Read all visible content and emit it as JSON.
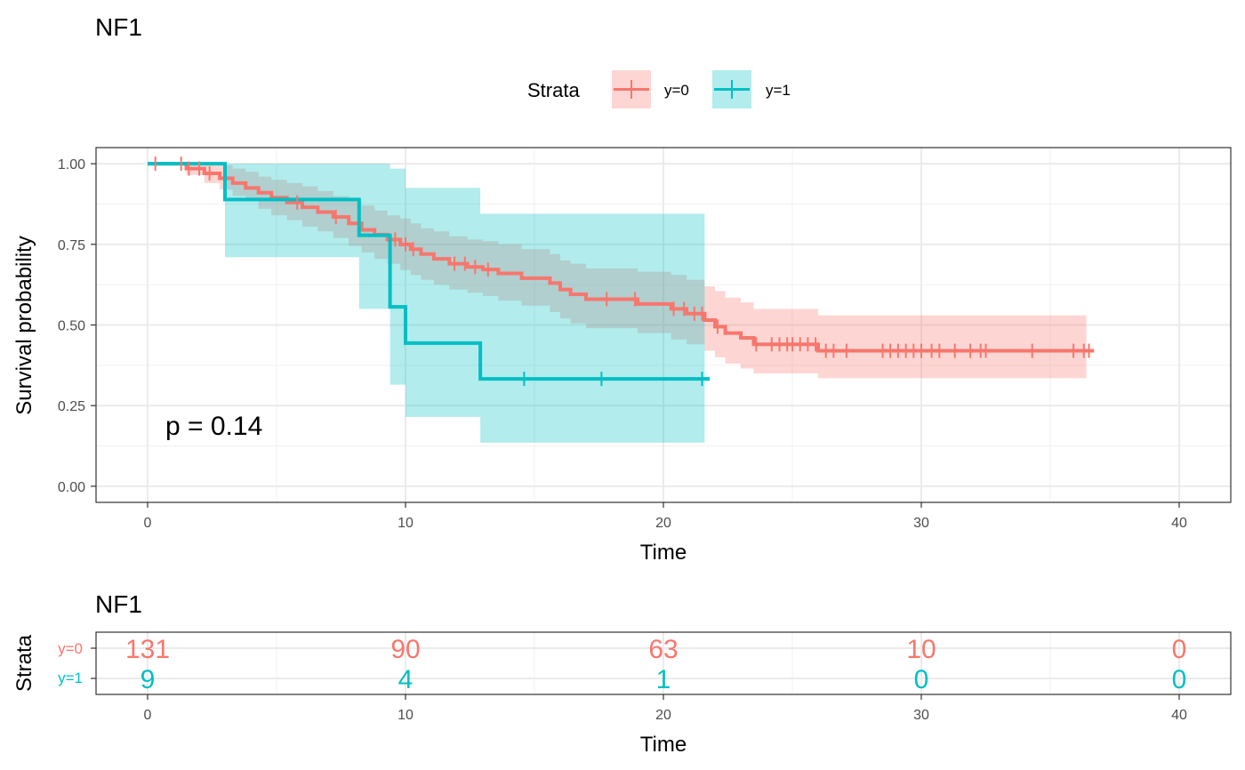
{
  "chart_data": [
    {
      "type": "line",
      "title": "NF1",
      "xlabel": "Time",
      "ylabel": "Survival probability",
      "xlim": [
        -2,
        42
      ],
      "ylim": [
        -0.05,
        1.05
      ],
      "x_ticks": [
        0,
        10,
        20,
        30,
        40
      ],
      "x_tick_labels": [
        "0",
        "10",
        "20",
        "30",
        "40"
      ],
      "y_ticks": [
        0,
        0.25,
        0.5,
        0.75,
        1.0
      ],
      "y_tick_labels": [
        "0.00",
        "0.25",
        "0.50",
        "0.75",
        "1.00"
      ],
      "grid": true,
      "legend": {
        "title": "Strata",
        "position": "top",
        "entries": [
          "y=0",
          "y=1"
        ]
      },
      "annotation": "p = 0.14",
      "series": [
        {
          "name": "y=0",
          "color": "#F8766D",
          "steps": [
            [
              0,
              1.0
            ],
            [
              1.5,
              0.985
            ],
            [
              2.2,
              0.97
            ],
            [
              2.8,
              0.955
            ],
            [
              3.3,
              0.94
            ],
            [
              3.8,
              0.925
            ],
            [
              4.3,
              0.91
            ],
            [
              4.8,
              0.895
            ],
            [
              5.4,
              0.88
            ],
            [
              6.0,
              0.865
            ],
            [
              6.6,
              0.85
            ],
            [
              7.2,
              0.835
            ],
            [
              7.8,
              0.815
            ],
            [
              8.3,
              0.795
            ],
            [
              8.8,
              0.78
            ],
            [
              9.3,
              0.765
            ],
            [
              9.8,
              0.75
            ],
            [
              10.2,
              0.735
            ],
            [
              10.6,
              0.72
            ],
            [
              11.1,
              0.705
            ],
            [
              11.7,
              0.69
            ],
            [
              12.4,
              0.68
            ],
            [
              13.0,
              0.672
            ],
            [
              13.6,
              0.66
            ],
            [
              14.5,
              0.645
            ],
            [
              15.6,
              0.63
            ],
            [
              16.0,
              0.61
            ],
            [
              16.4,
              0.595
            ],
            [
              17.0,
              0.58
            ],
            [
              19.0,
              0.565
            ],
            [
              20.3,
              0.55
            ],
            [
              20.9,
              0.535
            ],
            [
              21.6,
              0.515
            ],
            [
              22.0,
              0.495
            ],
            [
              22.4,
              0.475
            ],
            [
              23.0,
              0.46
            ],
            [
              23.5,
              0.44
            ],
            [
              26.0,
              0.42
            ]
          ],
          "end": 36.7,
          "censor": [
            0.3,
            1.3,
            1.6,
            2.0,
            2.4,
            5.8,
            7.3,
            9.6,
            10.0,
            10.3,
            11.9,
            12.3,
            12.7,
            13.2,
            17.8,
            18.9,
            20.4,
            20.8,
            21.2,
            21.5,
            22.1,
            23.6,
            24.2,
            24.5,
            24.8,
            25.0,
            25.3,
            25.6,
            25.9,
            26.3,
            26.6,
            27.1,
            28.5,
            28.8,
            29.1,
            29.4,
            29.7,
            30.0,
            30.4,
            30.7,
            31.3,
            31.9,
            32.3,
            32.5,
            34.3,
            35.9,
            36.3,
            36.5
          ],
          "ci": [
            [
              0,
              1.0,
              1.0
            ],
            [
              1.5,
              0.965,
              1.0
            ],
            [
              2.2,
              0.94,
              1.0
            ],
            [
              2.8,
              0.92,
              0.995
            ],
            [
              3.3,
              0.9,
              0.985
            ],
            [
              3.8,
              0.885,
              0.975
            ],
            [
              4.3,
              0.86,
              0.96
            ],
            [
              4.8,
              0.84,
              0.95
            ],
            [
              5.4,
              0.825,
              0.94
            ],
            [
              6.0,
              0.805,
              0.93
            ],
            [
              6.6,
              0.79,
              0.915
            ],
            [
              7.2,
              0.77,
              0.9
            ],
            [
              7.8,
              0.745,
              0.885
            ],
            [
              8.3,
              0.725,
              0.87
            ],
            [
              8.8,
              0.705,
              0.855
            ],
            [
              9.3,
              0.69,
              0.84
            ],
            [
              9.8,
              0.67,
              0.83
            ],
            [
              10.2,
              0.655,
              0.815
            ],
            [
              10.6,
              0.64,
              0.8
            ],
            [
              11.1,
              0.625,
              0.79
            ],
            [
              11.7,
              0.61,
              0.775
            ],
            [
              12.4,
              0.6,
              0.765
            ],
            [
              13.0,
              0.59,
              0.76
            ],
            [
              13.6,
              0.575,
              0.75
            ],
            [
              14.5,
              0.56,
              0.735
            ],
            [
              15.6,
              0.54,
              0.72
            ],
            [
              16.0,
              0.52,
              0.7
            ],
            [
              16.4,
              0.505,
              0.69
            ],
            [
              17.0,
              0.49,
              0.675
            ],
            [
              19.0,
              0.475,
              0.665
            ],
            [
              20.3,
              0.455,
              0.655
            ],
            [
              20.9,
              0.44,
              0.64
            ],
            [
              21.6,
              0.42,
              0.62
            ],
            [
              22.0,
              0.4,
              0.605
            ],
            [
              22.4,
              0.38,
              0.585
            ],
            [
              23.0,
              0.365,
              0.57
            ],
            [
              23.5,
              0.35,
              0.55
            ],
            [
              26.0,
              0.335,
              0.53
            ]
          ],
          "ci_end": 36.4
        },
        {
          "name": "y=1",
          "color": "#00BFC4",
          "steps": [
            [
              0,
              1.0
            ],
            [
              3.0,
              0.889
            ],
            [
              8.2,
              0.778
            ],
            [
              9.4,
              0.556
            ],
            [
              10.0,
              0.444
            ],
            [
              12.9,
              0.333
            ]
          ],
          "end": 21.8,
          "censor": [
            14.6,
            17.6,
            21.5
          ],
          "ci": [
            [
              0,
              1.0,
              1.0
            ],
            [
              3.0,
              0.71,
              1.0
            ],
            [
              8.2,
              0.55,
              1.0
            ],
            [
              9.4,
              0.315,
              0.985
            ],
            [
              10.0,
              0.215,
              0.925
            ],
            [
              12.9,
              0.135,
              0.845
            ]
          ],
          "ci_end": 21.6
        }
      ]
    },
    {
      "type": "table",
      "title": "NF1",
      "xlabel": "Time",
      "ylabel": "Strata",
      "xlim": [
        -2,
        42
      ],
      "x_ticks": [
        0,
        10,
        20,
        30,
        40
      ],
      "x_tick_labels": [
        "0",
        "10",
        "20",
        "30",
        "40"
      ],
      "rows": [
        {
          "label": "y=0",
          "color": "#F8766D",
          "values": [
            "131",
            "90",
            "63",
            "10",
            "0"
          ]
        },
        {
          "label": "y=1",
          "color": "#00BFC4",
          "values": [
            "9",
            "4",
            "1",
            "0",
            "0"
          ]
        }
      ]
    }
  ]
}
